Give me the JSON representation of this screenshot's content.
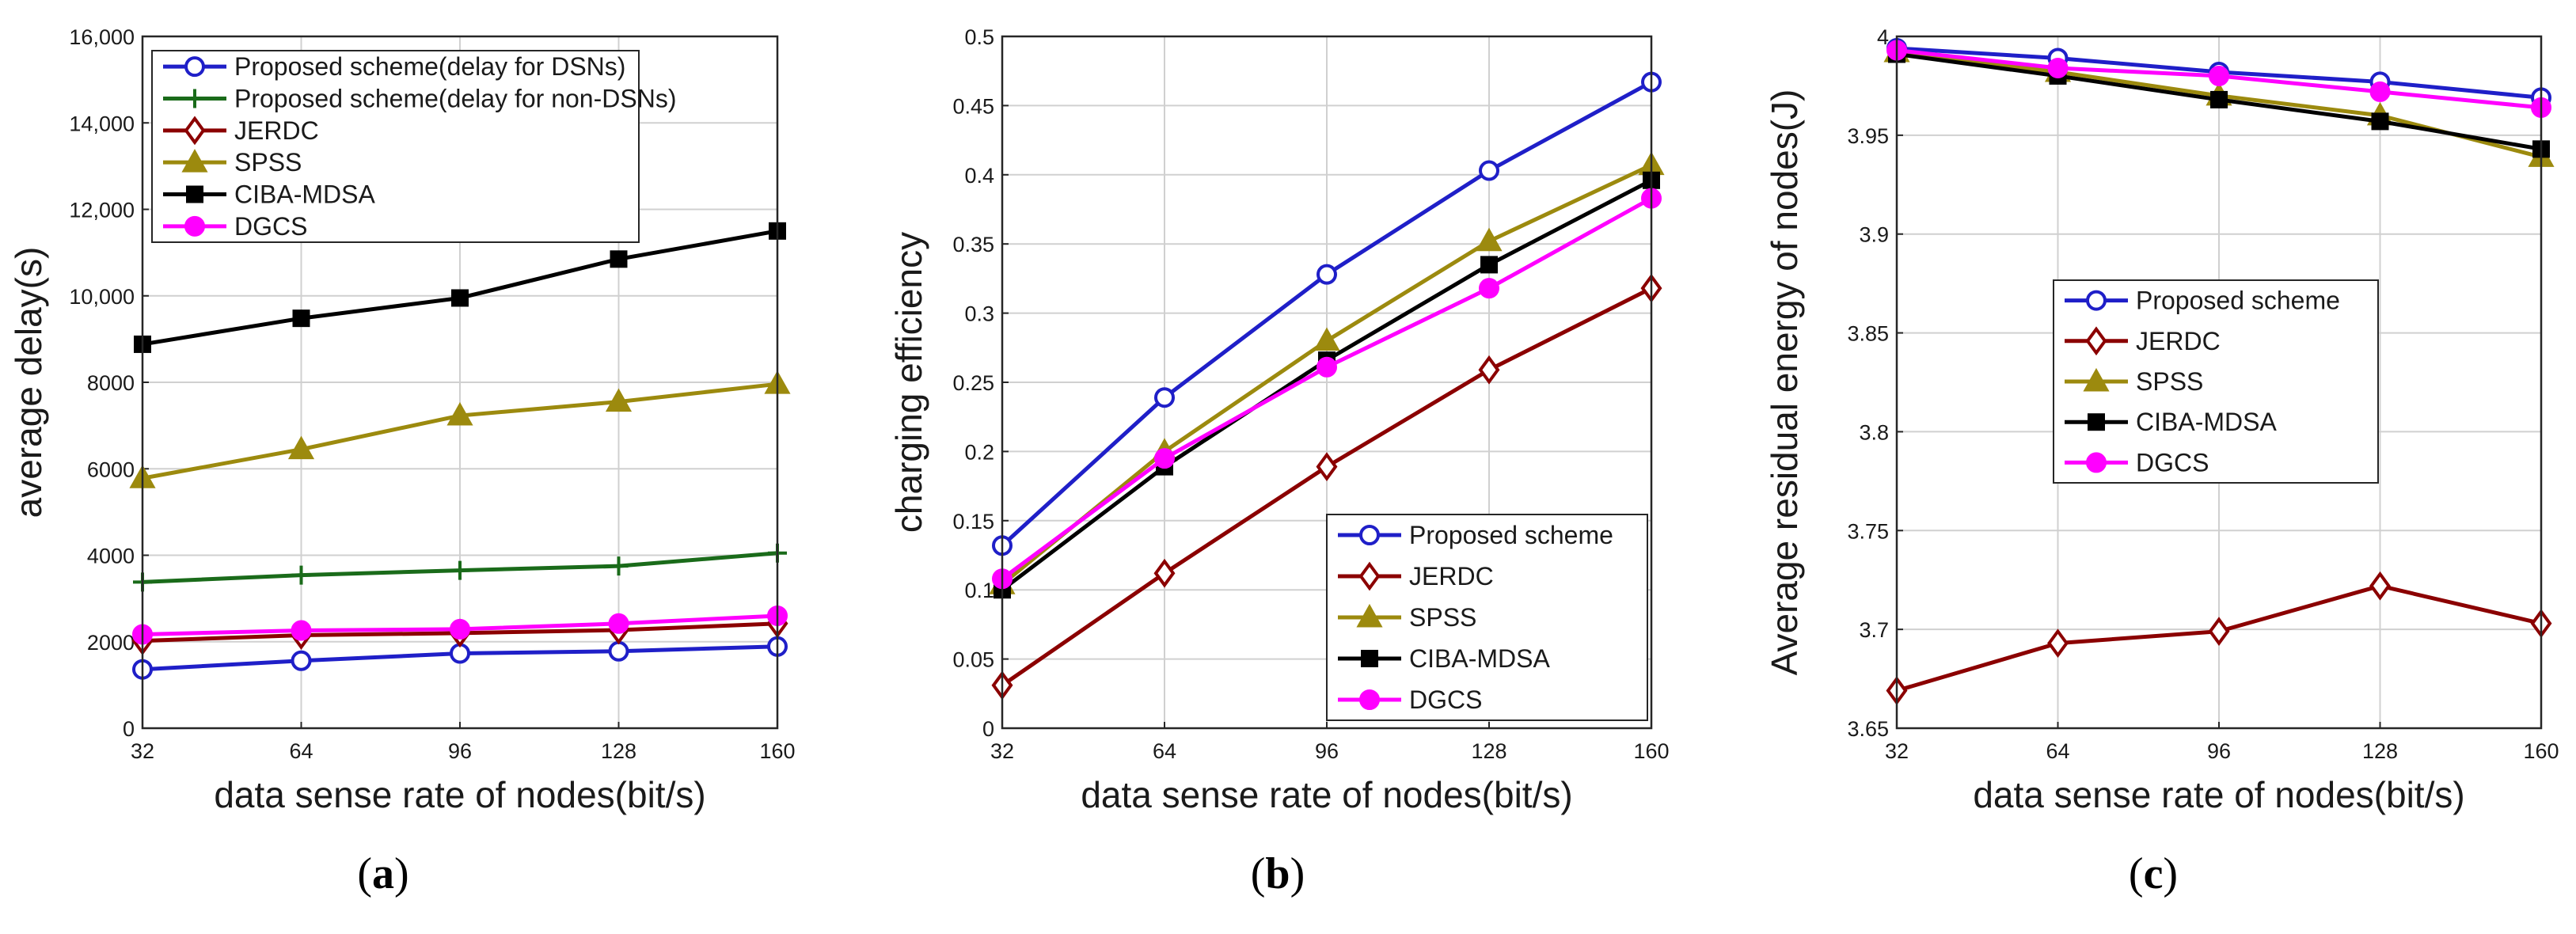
{
  "chart_data": [
    {
      "id": "a",
      "type": "line",
      "caption_open": "(",
      "caption_letter": "a",
      "caption_close": ")",
      "xlabel": "data sense rate of nodes(bit/s)",
      "ylabel": "average delay(s)",
      "x": [
        32,
        64,
        96,
        128,
        160
      ],
      "x_tick_labels": [
        "32",
        "64",
        "96",
        "128",
        "160"
      ],
      "xlim": [
        32,
        160
      ],
      "ylim": [
        0,
        16000
      ],
      "y_ticks": [
        0,
        2000,
        4000,
        6000,
        8000,
        10000,
        12000,
        14000,
        16000
      ],
      "y_tick_labels": [
        "0",
        "2000",
        "4000",
        "6000",
        "8000",
        "10,000",
        "12,000",
        "14,000",
        "16,000"
      ],
      "grid": true,
      "legend_position": "top-left",
      "series": [
        {
          "name": "Proposed scheme(delay for DSNs)",
          "color": "#1f1fc8",
          "marker": "circle",
          "values": [
            1360,
            1560,
            1730,
            1780,
            1890
          ]
        },
        {
          "name": "Proposed scheme(delay for non-DSNs)",
          "color": "#1a6b1a",
          "marker": "plus",
          "values": [
            3380,
            3540,
            3650,
            3750,
            4050
          ]
        },
        {
          "name": "JERDC",
          "color": "#8b0000",
          "marker": "diamond",
          "values": [
            2020,
            2150,
            2200,
            2270,
            2420
          ]
        },
        {
          "name": "SPSS",
          "color": "#9c8a0e",
          "marker": "triangle",
          "values": [
            5780,
            6450,
            7230,
            7550,
            7960
          ]
        },
        {
          "name": "CIBA-MDSA",
          "color": "#000000",
          "marker": "square",
          "values": [
            8880,
            9480,
            9950,
            10850,
            11500
          ]
        },
        {
          "name": "DGCS",
          "color": "#ff00ff",
          "marker": "circle",
          "values": [
            2170,
            2260,
            2290,
            2420,
            2600
          ]
        }
      ]
    },
    {
      "id": "b",
      "type": "line",
      "caption_open": "(",
      "caption_letter": "b",
      "caption_close": ")",
      "xlabel": "data sense rate of nodes(bit/s)",
      "ylabel": "charging efficiency",
      "x": [
        32,
        64,
        96,
        128,
        160
      ],
      "x_tick_labels": [
        "32",
        "64",
        "96",
        "128",
        "160"
      ],
      "xlim": [
        32,
        160
      ],
      "ylim": [
        0,
        0.5
      ],
      "y_ticks": [
        0,
        0.05,
        0.1,
        0.15,
        0.2,
        0.25,
        0.3,
        0.35,
        0.4,
        0.45,
        0.5
      ],
      "y_tick_labels": [
        "0",
        "0.05",
        "0.1",
        "0.15",
        "0.2",
        "0.25",
        "0.3",
        "0.35",
        "0.4",
        "0.45",
        "0.5"
      ],
      "grid": true,
      "legend_position": "bottom-right",
      "series": [
        {
          "name": "Proposed scheme",
          "color": "#1f1fc8",
          "marker": "circle",
          "values": [
            0.132,
            0.239,
            0.328,
            0.403,
            0.467
          ]
        },
        {
          "name": "JERDC",
          "color": "#8b0000",
          "marker": "diamond",
          "values": [
            0.031,
            0.112,
            0.189,
            0.259,
            0.318
          ]
        },
        {
          "name": "SPSS",
          "color": "#9c8a0e",
          "marker": "triangle",
          "values": [
            0.104,
            0.2,
            0.28,
            0.352,
            0.407
          ]
        },
        {
          "name": "CIBA-MDSA",
          "color": "#000000",
          "marker": "square",
          "values": [
            0.1,
            0.189,
            0.266,
            0.335,
            0.396
          ]
        },
        {
          "name": "DGCS",
          "color": "#ff00ff",
          "marker": "circle",
          "values": [
            0.108,
            0.195,
            0.261,
            0.318,
            0.383
          ]
        }
      ]
    },
    {
      "id": "c",
      "type": "line",
      "caption_open": "(",
      "caption_letter": "c",
      "caption_close": ")",
      "xlabel": "data sense rate of nodes(bit/s)",
      "ylabel": "Average residual energy of nodes(J)",
      "x": [
        32,
        64,
        96,
        128,
        160
      ],
      "x_tick_labels": [
        "32",
        "64",
        "96",
        "128",
        "160"
      ],
      "xlim": [
        32,
        160
      ],
      "ylim": [
        3.65,
        4.0
      ],
      "y_ticks": [
        3.65,
        3.7,
        3.75,
        3.8,
        3.85,
        3.9,
        3.95,
        4.0
      ],
      "y_tick_labels": [
        "3.65",
        "3.7",
        "3.75",
        "3.8",
        "3.85",
        "3.9",
        "3.95",
        "4"
      ],
      "grid": true,
      "legend_position": "center",
      "series": [
        {
          "name": "Proposed scheme",
          "color": "#1f1fc8",
          "marker": "circle",
          "values": [
            3.994,
            3.989,
            3.982,
            3.977,
            3.969
          ]
        },
        {
          "name": "JERDC",
          "color": "#8b0000",
          "marker": "diamond",
          "values": [
            3.669,
            3.693,
            3.699,
            3.722,
            3.703
          ]
        },
        {
          "name": "SPSS",
          "color": "#9c8a0e",
          "marker": "triangle",
          "values": [
            3.992,
            3.982,
            3.97,
            3.96,
            3.939
          ]
        },
        {
          "name": "CIBA-MDSA",
          "color": "#000000",
          "marker": "square",
          "values": [
            3.991,
            3.98,
            3.968,
            3.957,
            3.943
          ]
        },
        {
          "name": "DGCS",
          "color": "#ff00ff",
          "marker": "circle",
          "values": [
            3.993,
            3.984,
            3.98,
            3.972,
            3.964
          ]
        }
      ]
    }
  ]
}
